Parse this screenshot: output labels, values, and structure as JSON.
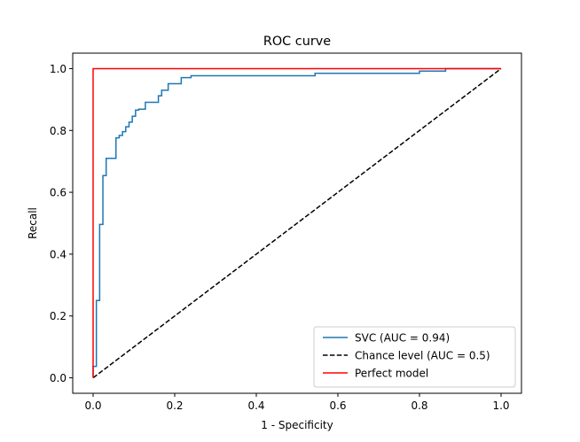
{
  "chart_data": {
    "type": "line",
    "title": "ROC curve",
    "xlabel": "1 - Specificity",
    "ylabel": "Recall",
    "xlim": [
      -0.05,
      1.05
    ],
    "ylim": [
      -0.05,
      1.05
    ],
    "xticks": [
      0.0,
      0.2,
      0.4,
      0.6,
      0.8,
      1.0
    ],
    "yticks": [
      0.0,
      0.2,
      0.4,
      0.6,
      0.8,
      1.0
    ],
    "xtick_labels": [
      "0.0",
      "0.2",
      "0.4",
      "0.6",
      "0.8",
      "1.0"
    ],
    "ytick_labels": [
      "0.0",
      "0.2",
      "0.4",
      "0.6",
      "0.8",
      "1.0"
    ],
    "grid": false,
    "legend_position": "lower-right",
    "series": [
      {
        "name": "SVC (AUC = 0.94)",
        "color": "#1f77b4",
        "line_style": "solid",
        "step": true,
        "x": [
          0.0,
          0.0,
          0.008,
          0.008,
          0.016,
          0.016,
          0.024,
          0.024,
          0.032,
          0.032,
          0.056,
          0.056,
          0.064,
          0.064,
          0.072,
          0.072,
          0.08,
          0.08,
          0.088,
          0.088,
          0.096,
          0.096,
          0.104,
          0.104,
          0.112,
          0.112,
          0.128,
          0.128,
          0.16,
          0.16,
          0.168,
          0.168,
          0.184,
          0.184,
          0.216,
          0.216,
          0.24,
          0.24,
          0.544,
          0.544,
          0.8,
          0.8,
          0.864,
          0.864,
          1.0
        ],
        "y": [
          0.0,
          0.037,
          0.037,
          0.25,
          0.25,
          0.496,
          0.496,
          0.654,
          0.654,
          0.71,
          0.71,
          0.776,
          0.776,
          0.784,
          0.784,
          0.796,
          0.796,
          0.812,
          0.812,
          0.827,
          0.827,
          0.846,
          0.846,
          0.866,
          0.866,
          0.869,
          0.869,
          0.891,
          0.891,
          0.912,
          0.912,
          0.93,
          0.93,
          0.951,
          0.951,
          0.971,
          0.971,
          0.977,
          0.977,
          0.985,
          0.985,
          0.992,
          0.992,
          1.0,
          1.0
        ]
      },
      {
        "name": "Chance level (AUC = 0.5)",
        "color": "#000000",
        "line_style": "dashed",
        "x": [
          0.0,
          1.0
        ],
        "y": [
          0.0,
          1.0
        ]
      },
      {
        "name": "Perfect model",
        "color": "#ff0000",
        "line_style": "solid",
        "x": [
          0.0,
          0.0,
          1.0
        ],
        "y": [
          0.0,
          1.0,
          1.0
        ]
      }
    ]
  }
}
